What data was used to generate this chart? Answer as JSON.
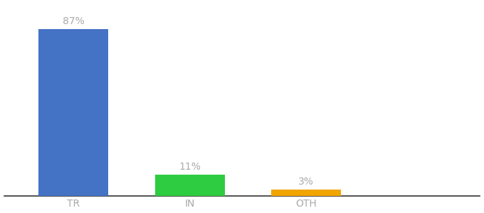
{
  "categories": [
    "TR",
    "IN",
    "OTH"
  ],
  "values": [
    87,
    11,
    3
  ],
  "bar_colors": [
    "#4472c4",
    "#2ecc40",
    "#f0a500"
  ],
  "value_labels": [
    "87%",
    "11%",
    "3%"
  ],
  "background_color": "#ffffff",
  "ylim": [
    0,
    100
  ],
  "bar_width": 0.6,
  "label_fontsize": 10,
  "tick_fontsize": 10,
  "label_color": "#aaaaaa",
  "spine_color": "#333333",
  "x_positions": [
    0,
    1,
    2
  ],
  "xlim": [
    -0.6,
    3.5
  ]
}
